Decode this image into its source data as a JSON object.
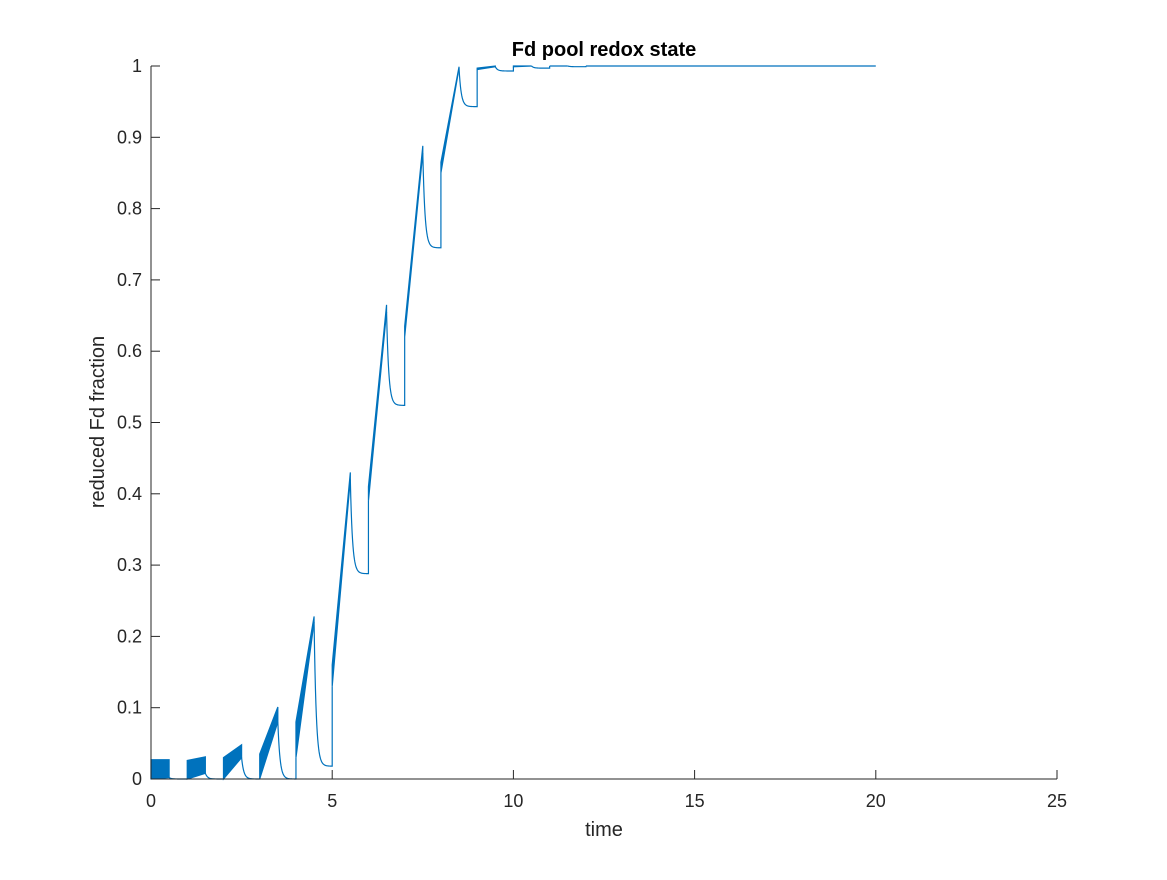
{
  "chart_data": {
    "type": "line",
    "title": "Fd pool redox state",
    "xlabel": "time",
    "ylabel": "reduced Fd fraction",
    "xlim": [
      0,
      25
    ],
    "ylim": [
      0,
      1
    ],
    "xticks": [
      0,
      5,
      10,
      15,
      20,
      25
    ],
    "xtick_labels": [
      "0",
      "5",
      "10",
      "15",
      "20",
      "25"
    ],
    "yticks": [
      0,
      0.1,
      0.2,
      0.3,
      0.4,
      0.5,
      0.6,
      0.7,
      0.8,
      0.9,
      1
    ],
    "ytick_labels": [
      "0",
      "0.1",
      "0.2",
      "0.3",
      "0.4",
      "0.5",
      "0.6",
      "0.7",
      "0.8",
      "0.9",
      "1"
    ],
    "grid": false,
    "box": false,
    "series_color": "#0072BD",
    "series": [
      {
        "segments": [
          {
            "t0": 0.0,
            "t1": 0.5,
            "min0": 0.0,
            "max0": 0.027,
            "min1": 0.002,
            "max1": 0.027,
            "y_end": 0.0
          },
          {
            "t0": 1.0,
            "t1": 1.5,
            "min0": 0.0,
            "max0": 0.026,
            "min1": 0.008,
            "max1": 0.031,
            "y_end": 0.0
          },
          {
            "t0": 2.0,
            "t1": 2.5,
            "min0": 0.0,
            "max0": 0.03,
            "min1": 0.03,
            "max1": 0.048,
            "y_end": 0.0
          },
          {
            "t0": 3.0,
            "t1": 3.5,
            "min0": 0.0,
            "max0": 0.035,
            "min1": 0.08,
            "max1": 0.101,
            "y_end": 0.0
          },
          {
            "t0": 4.0,
            "t1": 4.5,
            "min0": 0.03,
            "max0": 0.08,
            "min1": 0.22,
            "max1": 0.228,
            "y_end": 0.018
          },
          {
            "t0": 5.0,
            "t1": 5.5,
            "min0": 0.13,
            "max0": 0.16,
            "min1": 0.42,
            "max1": 0.43,
            "y_end": 0.288
          },
          {
            "t0": 6.0,
            "t1": 6.5,
            "min0": 0.39,
            "max0": 0.41,
            "min1": 0.655,
            "max1": 0.665,
            "y_end": 0.524
          },
          {
            "t0": 7.0,
            "t1": 7.5,
            "min0": 0.62,
            "max0": 0.635,
            "min1": 0.878,
            "max1": 0.888,
            "y_end": 0.745
          },
          {
            "t0": 8.0,
            "t1": 8.5,
            "min0": 0.85,
            "max0": 0.865,
            "min1": 0.997,
            "max1": 0.999,
            "y_end": 0.943
          },
          {
            "t0": 9.0,
            "t1": 9.5,
            "min0": 0.995,
            "max0": 0.997,
            "min1": 0.999,
            "max1": 1.0,
            "y_end": 0.993
          },
          {
            "t0": 10.0,
            "t1": 10.5,
            "min0": 0.999,
            "max0": 1.0,
            "min1": 1.0,
            "max1": 1.0,
            "y_end": 0.997
          },
          {
            "t0": 11.0,
            "t1": 11.5,
            "min0": 1.0,
            "max0": 1.0,
            "min1": 1.0,
            "max1": 1.0,
            "y_end": 0.999
          },
          {
            "t0": 12.0,
            "t1": 20.0,
            "min0": 1.0,
            "max0": 1.0,
            "min1": 1.0,
            "max1": 1.0,
            "y_end": 1.0
          }
        ]
      }
    ]
  }
}
